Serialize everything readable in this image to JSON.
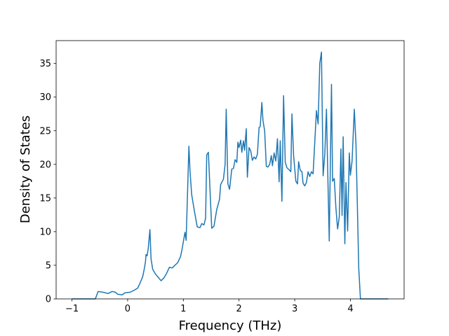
{
  "chart_data": {
    "type": "line",
    "xlabel": "Frequency (THz)",
    "ylabel": "Density of States",
    "color": "#1f77b4",
    "x": [
      -1.0,
      -0.58,
      -0.53,
      -0.45,
      -0.35,
      -0.28,
      -0.22,
      -0.18,
      -0.1,
      -0.05,
      0.05,
      0.12,
      0.18,
      0.22,
      0.27,
      0.3,
      0.32,
      0.33,
      0.35,
      0.37,
      0.4,
      0.42,
      0.45,
      0.5,
      0.55,
      0.6,
      0.65,
      0.7,
      0.75,
      0.8,
      0.85,
      0.9,
      0.95,
      0.98,
      1.0,
      1.03,
      1.05,
      1.08,
      1.1,
      1.12,
      1.15,
      1.2,
      1.25,
      1.3,
      1.33,
      1.37,
      1.4,
      1.42,
      1.45,
      1.48,
      1.51,
      1.55,
      1.6,
      1.65,
      1.67,
      1.72,
      1.75,
      1.77,
      1.8,
      1.83,
      1.87,
      1.9,
      1.93,
      1.96,
      1.98,
      2.0,
      2.03,
      2.05,
      2.08,
      2.1,
      2.13,
      2.15,
      2.18,
      2.21,
      2.24,
      2.27,
      2.3,
      2.33,
      2.36,
      2.38,
      2.41,
      2.43,
      2.46,
      2.49,
      2.52,
      2.55,
      2.58,
      2.6,
      2.63,
      2.66,
      2.69,
      2.72,
      2.74,
      2.77,
      2.8,
      2.83,
      2.86,
      2.9,
      2.93,
      2.95,
      2.98,
      3.02,
      3.05,
      3.07,
      3.1,
      3.13,
      3.15,
      3.18,
      3.21,
      3.24,
      3.27,
      3.3,
      3.33,
      3.36,
      3.39,
      3.42,
      3.45,
      3.48,
      3.51,
      3.54,
      3.57,
      3.59,
      3.62,
      3.66,
      3.68,
      3.71,
      3.74,
      3.77,
      3.8,
      3.83,
      3.85,
      3.87,
      3.9,
      3.92,
      3.95,
      3.98,
      4.0,
      4.03,
      4.07,
      4.1,
      4.15,
      4.18,
      4.68
    ],
    "values": [
      0,
      0,
      1.1,
      1.0,
      0.8,
      1.1,
      1.0,
      0.7,
      0.6,
      0.9,
      1.0,
      1.3,
      1.6,
      2.3,
      3.3,
      4.5,
      5.5,
      6.6,
      6.4,
      7.5,
      10.3,
      6.0,
      4.4,
      3.7,
      3.2,
      2.7,
      3.1,
      3.8,
      4.7,
      4.6,
      5.0,
      5.4,
      6.3,
      7.5,
      8.5,
      9.9,
      8.7,
      17.0,
      22.7,
      19.0,
      15.5,
      13.0,
      10.7,
      10.6,
      11.2,
      11.0,
      12.0,
      21.4,
      21.8,
      16.0,
      10.5,
      10.8,
      13.3,
      14.8,
      17.0,
      17.8,
      20.0,
      28.2,
      17.1,
      16.3,
      19.3,
      19.4,
      20.7,
      20.3,
      23.3,
      22.5,
      23.6,
      21.8,
      23.5,
      22.1,
      25.3,
      18.1,
      22.5,
      22.0,
      20.6,
      21.1,
      20.8,
      21.5,
      25.5,
      25.6,
      29.2,
      26.5,
      25.0,
      19.7,
      19.6,
      20.0,
      21.3,
      19.8,
      21.7,
      20.5,
      23.8,
      17.4,
      23.5,
      14.5,
      30.2,
      20.3,
      19.5,
      19.2,
      18.9,
      27.5,
      21.3,
      17.5,
      17.1,
      20.4,
      19.1,
      18.9,
      17.2,
      16.8,
      17.3,
      18.9,
      18.2,
      18.9,
      18.6,
      23.3,
      28.0,
      26.0,
      35.0,
      36.7,
      18.3,
      21.5,
      28.2,
      20.0,
      8.6,
      31.9,
      17.5,
      17.9,
      13.5,
      10.4,
      12.2,
      22.3,
      12.4,
      24.1,
      8.2,
      17.3,
      10.1,
      21.7,
      18.4,
      20.5,
      28.2,
      23.0,
      4.5,
      0,
      0
    ],
    "xlim": [
      -1.284,
      4.964
    ],
    "xticks": [
      {
        "value": -1,
        "label": "−1"
      },
      0,
      1,
      2,
      3,
      4
    ],
    "ylim": [
      0,
      38.4
    ],
    "yticks": [
      0,
      5,
      10,
      15,
      20,
      25,
      30,
      35
    ],
    "grid": false
  }
}
